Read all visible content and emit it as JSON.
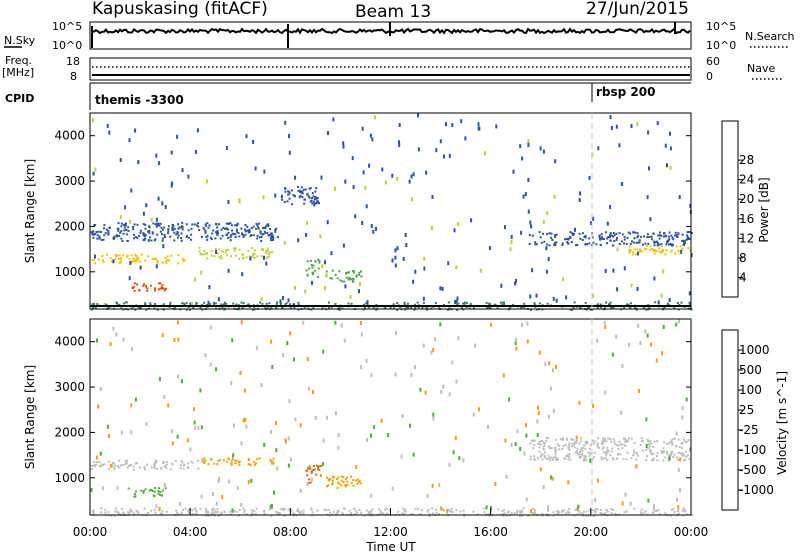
{
  "header": {
    "station": "Kapuskasing (fitACF)",
    "beam": "Beam 13",
    "date": "27/Jun/2015"
  },
  "aux_panels": {
    "nsky": {
      "left_label": "N.Sky",
      "right_label": "N.Search",
      "left_ticks": [
        "10^5",
        "10^0"
      ],
      "right_ticks": [
        "10^5",
        "10^0"
      ]
    },
    "freq": {
      "left_label_1": "Freq.",
      "left_label_2": "[MHz]",
      "right_label": "Nave",
      "left_ticks": [
        "18",
        "8"
      ],
      "right_ticks": [
        "60",
        "0"
      ]
    },
    "cpid": {
      "label": "CPID",
      "segments": [
        {
          "start_hour": 0,
          "label": "themis -3300"
        },
        {
          "start_hour": 20.0,
          "label": "rbsp 200"
        }
      ]
    }
  },
  "chart_data": [
    {
      "type": "heatmap",
      "title": "",
      "quantity": "Power",
      "xlabel": "",
      "ylabel": "Slant Range [km]",
      "xlim_hours": [
        0,
        24
      ],
      "ylim_km": [
        180,
        4500
      ],
      "y_ticks": [
        "1000",
        "2000",
        "3000",
        "4000"
      ],
      "colorbar": {
        "label": "Power [dB]",
        "ticks": [
          "4",
          "8",
          "12",
          "16",
          "20",
          "24",
          "28"
        ],
        "range": [
          0,
          30
        ],
        "colors": [
          "#0000ff",
          "#2a53a8",
          "#3a7a6a",
          "#4fa64a",
          "#bcd22f",
          "#f5c400",
          "#f08c00",
          "#e84800",
          "#dd0000"
        ]
      },
      "features": [
        {
          "t0": 0.0,
          "t1": 3.8,
          "r0": 1200,
          "r1": 1400,
          "value": 18
        },
        {
          "t0": 1.5,
          "t1": 3.0,
          "r0": 600,
          "r1": 800,
          "value": 24
        },
        {
          "t0": 4.3,
          "t1": 7.3,
          "r0": 1300,
          "r1": 1550,
          "value": 16
        },
        {
          "t0": 0.0,
          "t1": 7.5,
          "r0": 1700,
          "r1": 2100,
          "value": 6
        },
        {
          "t0": 7.6,
          "t1": 9.2,
          "r0": 2500,
          "r1": 2900,
          "value": 5
        },
        {
          "t0": 8.6,
          "t1": 9.2,
          "r0": 900,
          "r1": 1300,
          "value": 12
        },
        {
          "t0": 9.4,
          "t1": 10.8,
          "r0": 800,
          "r1": 1050,
          "value": 10
        },
        {
          "t0": 17.5,
          "t1": 24.0,
          "r0": 1600,
          "r1": 1900,
          "value": 6
        },
        {
          "t0": 21.5,
          "t1": 24.0,
          "r0": 1400,
          "r1": 1600,
          "value": 18
        },
        {
          "t0": 0.0,
          "t1": 24.0,
          "r0": 180,
          "r1": 350,
          "value": 8
        }
      ]
    },
    {
      "type": "heatmap",
      "title": "",
      "quantity": "Velocity",
      "xlabel": "Time UT",
      "ylabel": "Slant Range [km]",
      "xlim_hours": [
        0,
        24
      ],
      "ylim_km": [
        180,
        4500
      ],
      "x_ticks": [
        "00:00",
        "04:00",
        "08:00",
        "12:00",
        "16:00",
        "20:00",
        "00:00"
      ],
      "y_ticks": [
        "1000",
        "2000",
        "3000",
        "4000"
      ],
      "colorbar": {
        "label": "Velocity [m s^-1]",
        "ticks": [
          "1000",
          "500",
          "100",
          "25",
          "-25",
          "-100",
          "-500",
          "-1000"
        ],
        "colors": [
          "#1a1aa8",
          "#2f6fcf",
          "#3a8a6a",
          "#4caf3c",
          "#bebebe",
          "#f5d300",
          "#f5a000",
          "#f06000",
          "#e00000"
        ]
      },
      "features": [
        {
          "t0": 0.0,
          "t1": 4.3,
          "r0": 1200,
          "r1": 1400,
          "value": "ground"
        },
        {
          "t0": 1.5,
          "t1": 3.0,
          "r0": 600,
          "r1": 800,
          "value": 100
        },
        {
          "t0": 4.3,
          "t1": 7.3,
          "r0": 1300,
          "r1": 1450,
          "value": -100
        },
        {
          "t0": 8.6,
          "t1": 9.2,
          "r0": 900,
          "r1": 1300,
          "value": -500
        },
        {
          "t0": 9.4,
          "t1": 10.8,
          "r0": 800,
          "r1": 1050,
          "value": -100
        },
        {
          "t0": 17.5,
          "t1": 24.0,
          "r0": 1400,
          "r1": 1900,
          "value": "ground"
        },
        {
          "t0": 0.0,
          "t1": 24.0,
          "r0": 180,
          "r1": 350,
          "value": "ground"
        }
      ]
    }
  ]
}
